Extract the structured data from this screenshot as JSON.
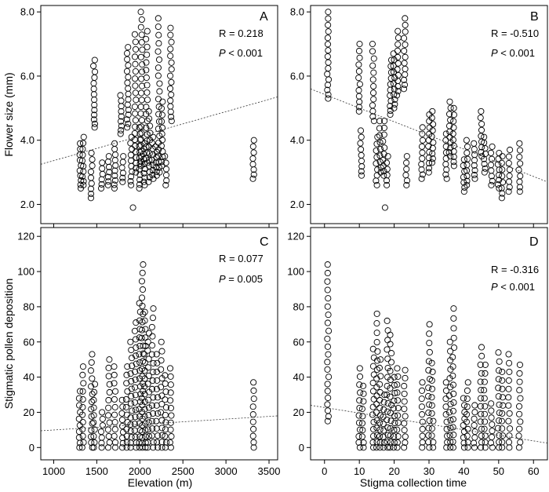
{
  "figure": {
    "x_title_elevation": "Elevation (m)",
    "x_title_time": "Stigma collection time",
    "y_title_top": "Flower size (mm)",
    "y_title_bottom": "Stigmatic pollen deposition",
    "p_symbol": "P"
  },
  "chart_data": [
    {
      "panel": "A",
      "type": "scatter",
      "xlabel": "",
      "ylabel": "Flower size (mm)",
      "xlim": [
        850,
        3600
      ],
      "ylim": [
        1.4,
        8.2
      ],
      "xticks": [
        1000,
        1500,
        2000,
        2500,
        3000,
        3500
      ],
      "yticks": [
        2.0,
        4.0,
        6.0,
        8.0
      ],
      "ytick_labels": [
        "2.0",
        "4.0",
        "6.0",
        "8.0"
      ],
      "r_text": "R = 0.218",
      "p_text": " < 0.001",
      "fit": [
        [
          850,
          3.25
        ],
        [
          3600,
          5.35
        ]
      ],
      "groups": [
        {
          "x": 1310,
          "ymin": 2.5,
          "ymax": 3.9,
          "n": 10
        },
        {
          "x": 1340,
          "ymin": 2.6,
          "ymax": 4.1,
          "n": 10
        },
        {
          "x": 1440,
          "ymin": 2.2,
          "ymax": 3.6,
          "n": 9
        },
        {
          "x": 1470,
          "ymin": 4.4,
          "ymax": 6.5,
          "n": 14
        },
        {
          "x": 1560,
          "ymin": 2.5,
          "ymax": 3.3,
          "n": 6
        },
        {
          "x": 1640,
          "ymin": 2.6,
          "ymax": 3.5,
          "n": 7
        },
        {
          "x": 1710,
          "ymin": 2.5,
          "ymax": 3.9,
          "n": 10
        },
        {
          "x": 1780,
          "ymin": 4.2,
          "ymax": 5.4,
          "n": 9
        },
        {
          "x": 1800,
          "ymin": 2.7,
          "ymax": 3.5,
          "n": 6
        },
        {
          "x": 1860,
          "ymin": 4.4,
          "ymax": 6.9,
          "n": 16
        },
        {
          "x": 1900,
          "ymin": 2.6,
          "ymax": 4.1,
          "n": 10
        },
        {
          "x": 1920,
          "ymin": 1.9,
          "ymax": 1.9,
          "n": 1
        },
        {
          "x": 1950,
          "ymin": 3.0,
          "ymax": 7.3,
          "n": 22
        },
        {
          "x": 2000,
          "ymin": 2.5,
          "ymax": 4.4,
          "n": 12
        },
        {
          "x": 2020,
          "ymin": 3.2,
          "ymax": 8.0,
          "n": 24
        },
        {
          "x": 2050,
          "ymin": 2.6,
          "ymax": 3.9,
          "n": 10
        },
        {
          "x": 2080,
          "ymin": 3.3,
          "ymax": 7.4,
          "n": 20
        },
        {
          "x": 2110,
          "ymin": 2.7,
          "ymax": 4.9,
          "n": 12
        },
        {
          "x": 2150,
          "ymin": 2.8,
          "ymax": 4.1,
          "n": 9
        },
        {
          "x": 2190,
          "ymin": 2.9,
          "ymax": 3.8,
          "n": 7
        },
        {
          "x": 2220,
          "ymin": 3.0,
          "ymax": 7.8,
          "n": 22
        },
        {
          "x": 2260,
          "ymin": 3.2,
          "ymax": 5.2,
          "n": 12
        },
        {
          "x": 2300,
          "ymin": 2.6,
          "ymax": 3.5,
          "n": 6
        },
        {
          "x": 2360,
          "ymin": 4.6,
          "ymax": 7.5,
          "n": 16
        },
        {
          "x": 3320,
          "ymin": 2.8,
          "ymax": 4.0,
          "n": 8
        }
      ]
    },
    {
      "panel": "B",
      "type": "scatter",
      "xlabel": "",
      "ylabel": "",
      "xlim": [
        -4,
        64
      ],
      "ylim": [
        1.4,
        8.2
      ],
      "xticks": [
        0,
        10,
        20,
        30,
        40,
        50,
        60
      ],
      "yticks": [
        2.0,
        4.0,
        6.0,
        8.0
      ],
      "ytick_labels": [
        "2.0",
        "4.0",
        "6.0",
        "8.0"
      ],
      "r_text": "R = -0.510",
      "p_text": " < 0.001",
      "fit": [
        [
          -4,
          5.6
        ],
        [
          64,
          2.7
        ]
      ],
      "groups": [
        {
          "x": 1,
          "ymin": 5.3,
          "ymax": 8.0,
          "n": 16
        },
        {
          "x": 10,
          "ymin": 4.9,
          "ymax": 7.0,
          "n": 12
        },
        {
          "x": 10.5,
          "ymin": 2.9,
          "ymax": 4.3,
          "n": 9
        },
        {
          "x": 14,
          "ymin": 4.6,
          "ymax": 7.0,
          "n": 13
        },
        {
          "x": 15,
          "ymin": 2.6,
          "ymax": 4.1,
          "n": 9
        },
        {
          "x": 16,
          "ymin": 3.0,
          "ymax": 4.6,
          "n": 9
        },
        {
          "x": 17,
          "ymin": 2.9,
          "ymax": 4.6,
          "n": 10
        },
        {
          "x": 17.5,
          "ymin": 1.9,
          "ymax": 1.9,
          "n": 1
        },
        {
          "x": 18,
          "ymin": 2.6,
          "ymax": 3.5,
          "n": 6
        },
        {
          "x": 19,
          "ymin": 4.8,
          "ymax": 6.5,
          "n": 11
        },
        {
          "x": 20,
          "ymin": 5.0,
          "ymax": 6.7,
          "n": 11
        },
        {
          "x": 21,
          "ymin": 5.4,
          "ymax": 7.4,
          "n": 12
        },
        {
          "x": 23,
          "ymin": 5.6,
          "ymax": 7.8,
          "n": 13
        },
        {
          "x": 23.5,
          "ymin": 2.6,
          "ymax": 3.5,
          "n": 6
        },
        {
          "x": 28,
          "ymin": 2.8,
          "ymax": 4.4,
          "n": 10
        },
        {
          "x": 30,
          "ymin": 3.0,
          "ymax": 4.8,
          "n": 11
        },
        {
          "x": 31,
          "ymin": 3.3,
          "ymax": 4.9,
          "n": 10
        },
        {
          "x": 35,
          "ymin": 2.8,
          "ymax": 4.2,
          "n": 9
        },
        {
          "x": 36,
          "ymin": 3.5,
          "ymax": 5.2,
          "n": 11
        },
        {
          "x": 37,
          "ymin": 3.2,
          "ymax": 5.0,
          "n": 11
        },
        {
          "x": 40,
          "ymin": 2.4,
          "ymax": 3.4,
          "n": 7
        },
        {
          "x": 41,
          "ymin": 2.6,
          "ymax": 4.0,
          "n": 9
        },
        {
          "x": 43,
          "ymin": 2.8,
          "ymax": 3.9,
          "n": 8
        },
        {
          "x": 45,
          "ymin": 3.5,
          "ymax": 4.9,
          "n": 9
        },
        {
          "x": 46,
          "ymin": 3.0,
          "ymax": 4.1,
          "n": 8
        },
        {
          "x": 48,
          "ymin": 2.6,
          "ymax": 3.8,
          "n": 8
        },
        {
          "x": 50,
          "ymin": 2.5,
          "ymax": 3.6,
          "n": 8
        },
        {
          "x": 51,
          "ymin": 2.2,
          "ymax": 3.5,
          "n": 8
        },
        {
          "x": 53,
          "ymin": 2.4,
          "ymax": 3.7,
          "n": 8
        },
        {
          "x": 56,
          "ymin": 2.4,
          "ymax": 3.9,
          "n": 9
        }
      ]
    },
    {
      "panel": "C",
      "type": "scatter",
      "xlabel": "Elevation (m)",
      "ylabel": "Stigmatic pollen deposition",
      "xlim": [
        850,
        3600
      ],
      "ylim": [
        -7,
        125
      ],
      "xticks": [
        1000,
        1500,
        2000,
        2500,
        3000,
        3500
      ],
      "xtick_labels": [
        "1000",
        "1500",
        "2000",
        "2500",
        "3000",
        "3500"
      ],
      "yticks": [
        0,
        20,
        40,
        60,
        80,
        100,
        120
      ],
      "ytick_labels": [
        "0",
        "20",
        "40",
        "60",
        "80",
        "100",
        "120"
      ],
      "r_text": "R = 0.077",
      "p_text": " = 0.005",
      "fit": [
        [
          850,
          9.5
        ],
        [
          3600,
          18
        ]
      ],
      "groups": [
        {
          "x": 1300,
          "ymin": 0,
          "ymax": 32,
          "n": 10
        },
        {
          "x": 1340,
          "ymin": 0,
          "ymax": 46,
          "n": 12
        },
        {
          "x": 1440,
          "ymin": 0,
          "ymax": 53,
          "n": 14
        },
        {
          "x": 1470,
          "ymin": 0,
          "ymax": 36,
          "n": 10
        },
        {
          "x": 1560,
          "ymin": 0,
          "ymax": 20,
          "n": 7
        },
        {
          "x": 1640,
          "ymin": 0,
          "ymax": 50,
          "n": 13
        },
        {
          "x": 1710,
          "ymin": 0,
          "ymax": 46,
          "n": 12
        },
        {
          "x": 1800,
          "ymin": 0,
          "ymax": 27,
          "n": 9
        },
        {
          "x": 1850,
          "ymin": 0,
          "ymax": 46,
          "n": 12
        },
        {
          "x": 1900,
          "ymin": 0,
          "ymax": 60,
          "n": 16
        },
        {
          "x": 1950,
          "ymin": 0,
          "ymax": 71,
          "n": 18
        },
        {
          "x": 2000,
          "ymin": 0,
          "ymax": 82,
          "n": 20
        },
        {
          "x": 2030,
          "ymin": 0,
          "ymax": 104,
          "n": 26
        },
        {
          "x": 2060,
          "ymin": 0,
          "ymax": 77,
          "n": 19
        },
        {
          "x": 2100,
          "ymin": 0,
          "ymax": 65,
          "n": 16
        },
        {
          "x": 2150,
          "ymin": 0,
          "ymax": 79,
          "n": 18
        },
        {
          "x": 2200,
          "ymin": 0,
          "ymax": 53,
          "n": 13
        },
        {
          "x": 2250,
          "ymin": 0,
          "ymax": 60,
          "n": 14
        },
        {
          "x": 2300,
          "ymin": 0,
          "ymax": 41,
          "n": 11
        },
        {
          "x": 2360,
          "ymin": 0,
          "ymax": 45,
          "n": 12
        },
        {
          "x": 3320,
          "ymin": 0,
          "ymax": 37,
          "n": 10
        }
      ]
    },
    {
      "panel": "D",
      "type": "scatter",
      "xlabel": "Stigma collection time",
      "ylabel": "",
      "xlim": [
        -4,
        64
      ],
      "ylim": [
        -7,
        125
      ],
      "xticks": [
        0,
        10,
        20,
        30,
        40,
        50,
        60
      ],
      "xtick_labels": [
        "0",
        "10",
        "20",
        "30",
        "40",
        "50",
        "60"
      ],
      "yticks": [
        0,
        20,
        40,
        60,
        80,
        100,
        120
      ],
      "ytick_labels": [
        "0",
        "20",
        "40",
        "60",
        "80",
        "100",
        "120"
      ],
      "r_text": "R = -0.316",
      "p_text": " < 0.001",
      "fit": [
        [
          -4,
          24
        ],
        [
          64,
          2.5
        ]
      ],
      "groups": [
        {
          "x": 1,
          "ymin": 15,
          "ymax": 104,
          "n": 22
        },
        {
          "x": 10,
          "ymin": 0,
          "ymax": 45,
          "n": 12
        },
        {
          "x": 11,
          "ymin": 0,
          "ymax": 35,
          "n": 10
        },
        {
          "x": 14,
          "ymin": 0,
          "ymax": 56,
          "n": 14
        },
        {
          "x": 15,
          "ymin": 0,
          "ymax": 76,
          "n": 17
        },
        {
          "x": 16,
          "ymin": 0,
          "ymax": 50,
          "n": 13
        },
        {
          "x": 17,
          "ymin": 0,
          "ymax": 30,
          "n": 9
        },
        {
          "x": 18,
          "ymin": 0,
          "ymax": 72,
          "n": 16
        },
        {
          "x": 19,
          "ymin": 0,
          "ymax": 64,
          "n": 15
        },
        {
          "x": 20,
          "ymin": 0,
          "ymax": 40,
          "n": 11
        },
        {
          "x": 21,
          "ymin": 0,
          "ymax": 45,
          "n": 12
        },
        {
          "x": 23,
          "ymin": 0,
          "ymax": 44,
          "n": 12
        },
        {
          "x": 28,
          "ymin": 0,
          "ymax": 37,
          "n": 10
        },
        {
          "x": 30,
          "ymin": 0,
          "ymax": 70,
          "n": 16
        },
        {
          "x": 31,
          "ymin": 0,
          "ymax": 48,
          "n": 12
        },
        {
          "x": 35,
          "ymin": 0,
          "ymax": 37,
          "n": 10
        },
        {
          "x": 36,
          "ymin": 0,
          "ymax": 60,
          "n": 14
        },
        {
          "x": 37,
          "ymin": 0,
          "ymax": 79,
          "n": 17
        },
        {
          "x": 40,
          "ymin": 0,
          "ymax": 28,
          "n": 9
        },
        {
          "x": 41,
          "ymin": 0,
          "ymax": 37,
          "n": 10
        },
        {
          "x": 43,
          "ymin": 0,
          "ymax": 24,
          "n": 8
        },
        {
          "x": 45,
          "ymin": 0,
          "ymax": 57,
          "n": 14
        },
        {
          "x": 46,
          "ymin": 0,
          "ymax": 47,
          "n": 12
        },
        {
          "x": 48,
          "ymin": 0,
          "ymax": 25,
          "n": 8
        },
        {
          "x": 50,
          "ymin": 0,
          "ymax": 54,
          "n": 13
        },
        {
          "x": 51,
          "ymin": 0,
          "ymax": 43,
          "n": 11
        },
        {
          "x": 53,
          "ymin": 0,
          "ymax": 53,
          "n": 13
        },
        {
          "x": 56,
          "ymin": 0,
          "ymax": 47,
          "n": 12
        }
      ]
    }
  ]
}
